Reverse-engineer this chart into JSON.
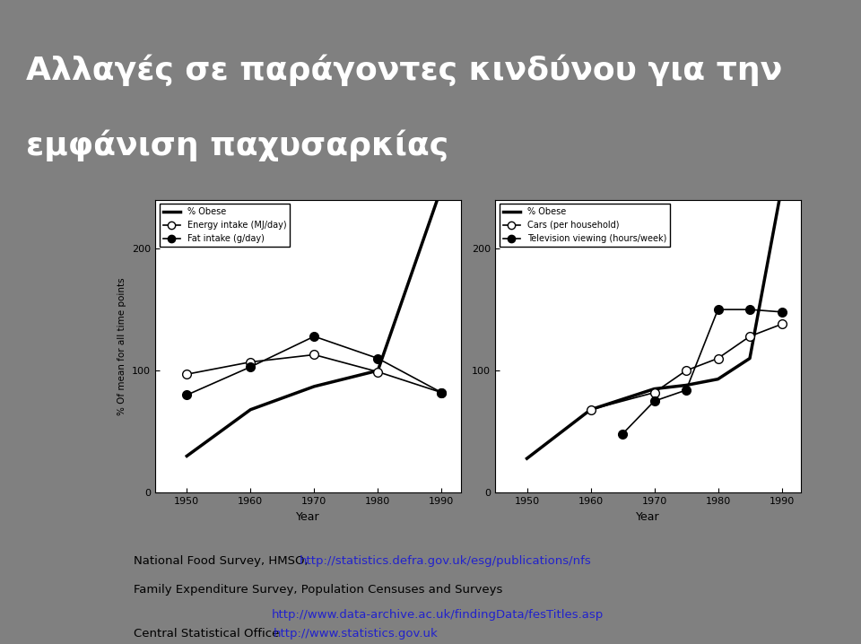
{
  "title_line1": "Αλλαγές σε παράγοντες κινδύνου για την",
  "title_line2": "εμφάνιση παχυσαρκίας",
  "title_bg": "#2E4B7B",
  "title_color": "#FFFFFF",
  "slide_bg": "#808080",
  "chart_bg": "#FFFFFF",
  "years_left": [
    1950,
    1960,
    1970,
    1980,
    1990
  ],
  "obese_left": [
    30,
    68,
    87,
    100,
    250
  ],
  "energy_left": [
    97,
    107,
    113,
    99,
    82
  ],
  "fat_left": [
    80,
    103,
    128,
    110,
    82
  ],
  "years_cars": [
    1960,
    1970,
    1975,
    1980,
    1985,
    1990
  ],
  "cars_vals": [
    68,
    82,
    100,
    110,
    128,
    138
  ],
  "years_tv": [
    1965,
    1970,
    1975,
    1980,
    1985,
    1990
  ],
  "tv_vals": [
    48,
    75,
    84,
    150,
    150,
    148
  ],
  "years_right_obese": [
    1950,
    1960,
    1970,
    1975,
    1980,
    1985,
    1990
  ],
  "obese_right_vals": [
    28,
    68,
    85,
    88,
    93,
    110,
    250
  ],
  "ylabel": "% Of mean for all time points",
  "xlabel": "Year",
  "ylim": [
    0,
    240
  ],
  "yticks": [
    0,
    100,
    200
  ],
  "xticks": [
    1950,
    1960,
    1970,
    1980,
    1990
  ],
  "legend1": [
    "% Obese",
    "Energy intake (MJ/day)",
    "Fat intake (g/day)"
  ],
  "legend2": [
    "% Obese",
    "Cars (per household)",
    "Television viewing (hours/week)"
  ],
  "source1_plain": "National Food Survey, HMSO, ",
  "source1_link": "http://statistics.defra.gov.uk/esg/publications/nfs",
  "source2_plain": "Family Expenditure Survey, Population Censuses and Surveys",
  "source2_link": "http://www.data-archive.ac.uk/findingData/fesTitles.asp",
  "source3_plain": "Central Statistical Office ",
  "source3_link": "http://www.statistics.gov.uk"
}
